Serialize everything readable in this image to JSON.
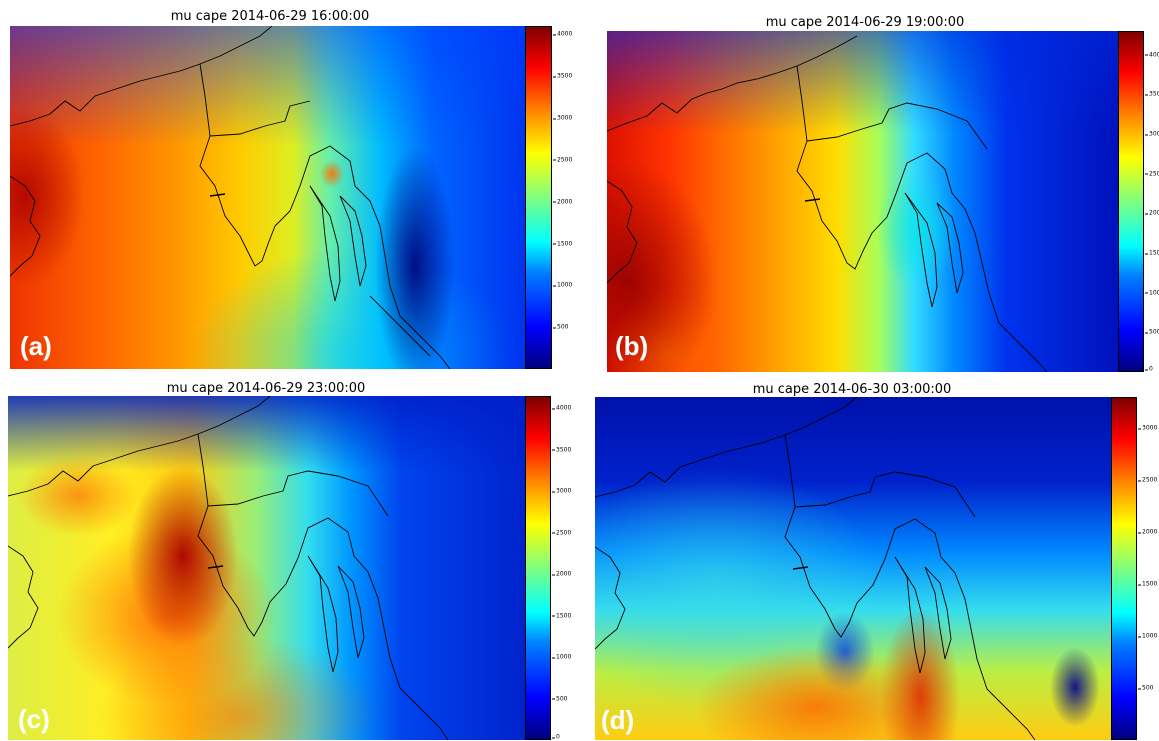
{
  "panels": [
    {
      "title": "mu cape 2014-06-29 16:00:00",
      "label": "(a)",
      "colorbar_ticks": [
        "500",
        "1000",
        "1500",
        "2000",
        "2500",
        "3000",
        "3500",
        "4000"
      ],
      "cmax": 4100
    },
    {
      "title": "mu cape 2014-06-29 19:00:00",
      "label": "(b)",
      "colorbar_ticks": [
        "0",
        "500",
        "1000",
        "1500",
        "2000",
        "2500",
        "3000",
        "3500",
        "4000"
      ],
      "cmax": 4300
    },
    {
      "title": "mu cape 2014-06-29 23:00:00",
      "label": "(c)",
      "colorbar_ticks": [
        "0",
        "500",
        "1000",
        "1500",
        "2000",
        "2500",
        "3000",
        "3500",
        "4000"
      ],
      "cmax": 4150
    },
    {
      "title": "mu cape 2014-06-30 03:00:00",
      "label": "(d)",
      "colorbar_ticks": [
        "500",
        "1000",
        "1500",
        "2000",
        "2500",
        "3000"
      ],
      "cmax": 3300
    }
  ],
  "colormap": "jet",
  "colors": {
    "low": "#00007f",
    "mid": "#7fff7f",
    "high": "#7f0000"
  }
}
